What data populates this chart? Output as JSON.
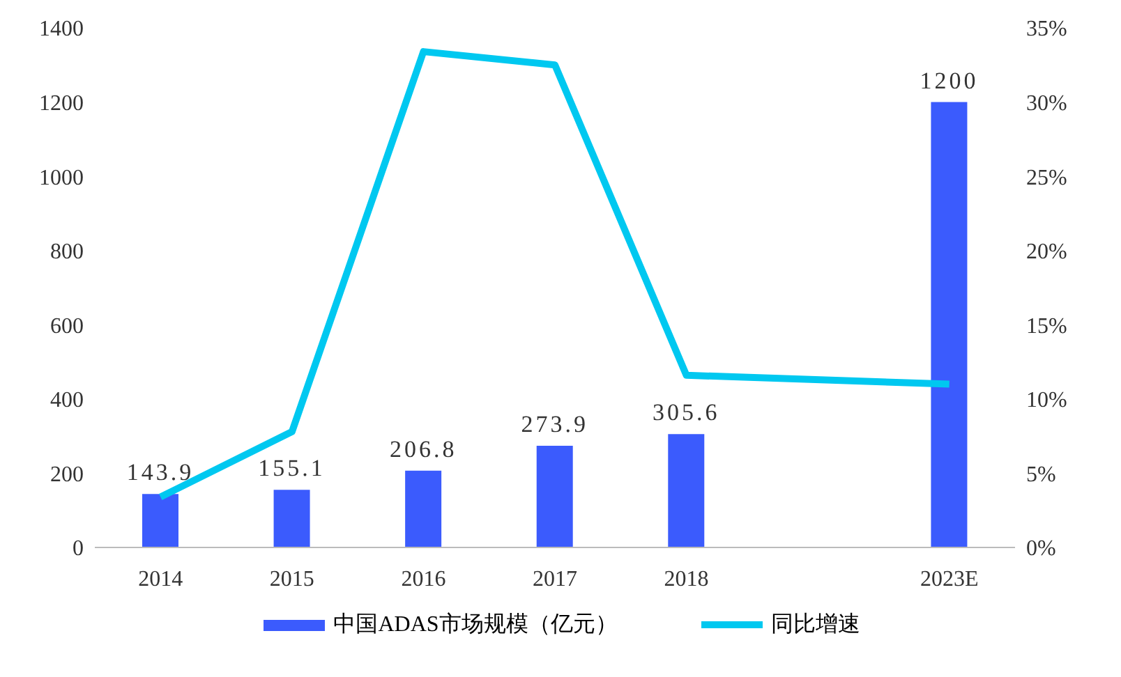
{
  "chart_data": {
    "type": "bar",
    "categories": [
      "2014",
      "2015",
      "2016",
      "2017",
      "2018",
      null,
      "2023E"
    ],
    "series": [
      {
        "name": "中国ADAS市场规模（亿元）",
        "color": "#3b5bfd",
        "values": [
          143.9,
          155.1,
          206.8,
          273.9,
          305.6,
          null,
          1200
        ],
        "value_labels": [
          "143.9",
          "155.1",
          "206.8",
          "273.9",
          "305.6",
          null,
          "1200"
        ]
      },
      {
        "name": "同比增速",
        "type": "line",
        "axis": "y2",
        "color": "#00c8f0",
        "values": [
          3.4,
          7.8,
          33.4,
          32.5,
          11.6,
          null,
          11.0
        ]
      }
    ],
    "ylim": [
      0,
      1400
    ],
    "yticks": [
      0,
      200,
      400,
      600,
      800,
      1000,
      1200,
      1400
    ],
    "y2lim": [
      0,
      35
    ],
    "y2ticks": [
      {
        "value": 0,
        "label": "0%"
      },
      {
        "value": 5,
        "label": "5%"
      },
      {
        "value": 10,
        "label": "10%"
      },
      {
        "value": 15,
        "label": "15%"
      },
      {
        "value": 20,
        "label": "20%"
      },
      {
        "value": 25,
        "label": "25%"
      },
      {
        "value": 30,
        "label": "30%"
      },
      {
        "value": 35,
        "label": "35%"
      }
    ],
    "grid": false,
    "legend": "bottom",
    "marker": "none",
    "line_style": "solid"
  }
}
